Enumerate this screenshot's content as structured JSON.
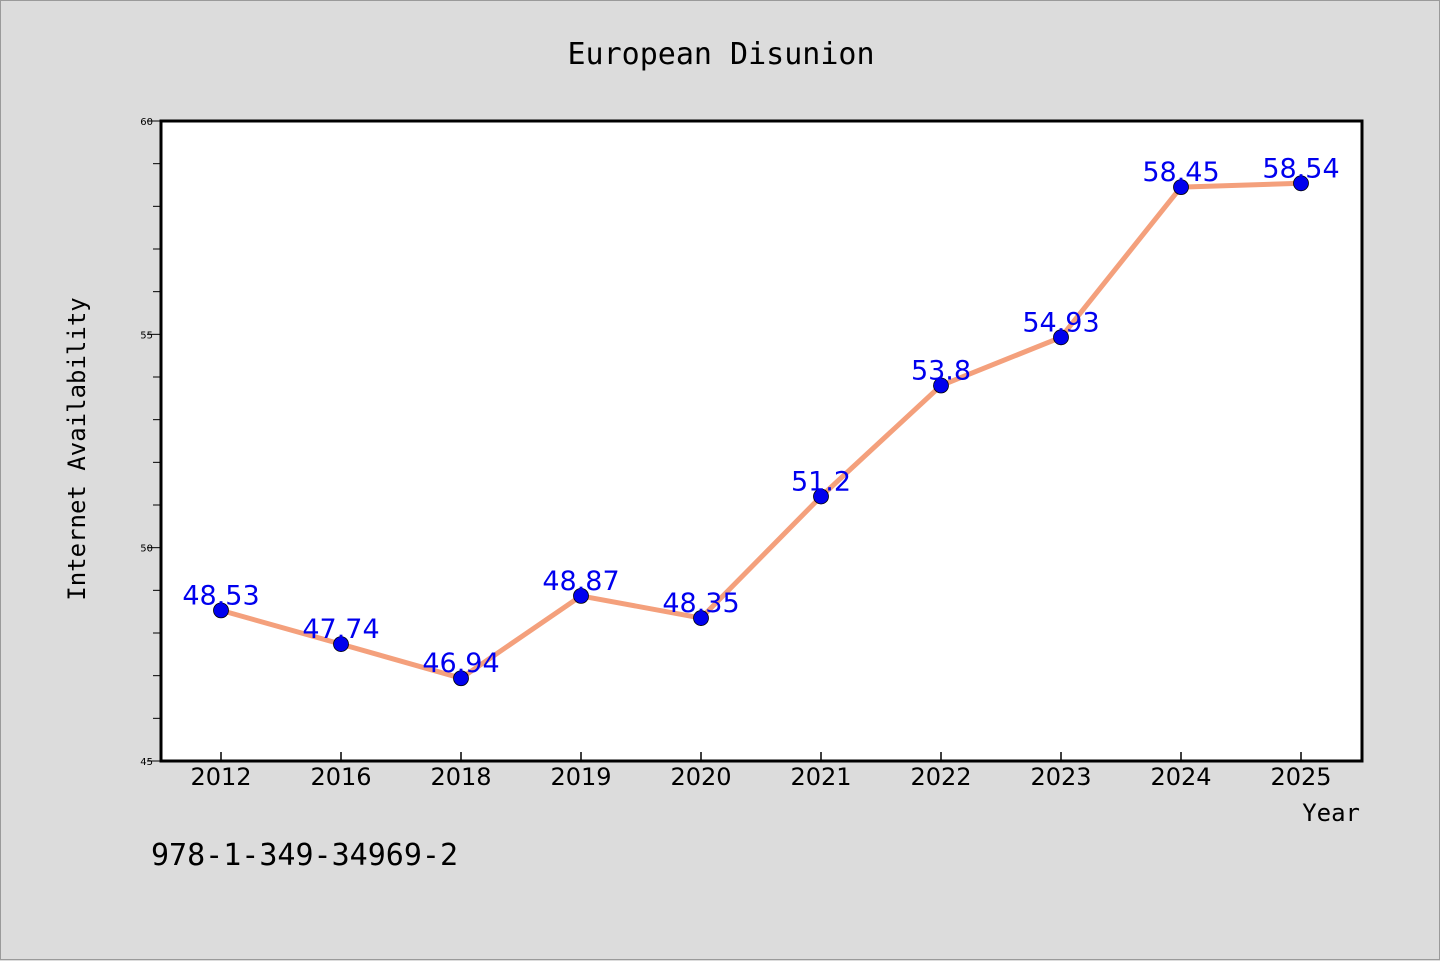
{
  "chart_data": {
    "type": "line",
    "title": "European Disunion",
    "xlabel": "Year",
    "ylabel": "Internet Availability",
    "categories": [
      "2012",
      "2016",
      "2018",
      "2019",
      "2020",
      "2021",
      "2022",
      "2023",
      "2024",
      "2025"
    ],
    "series": [
      {
        "values": [
          48.53,
          47.74,
          46.94,
          48.87,
          48.35,
          51.2,
          53.8,
          54.93,
          58.45,
          58.54
        ],
        "labels": [
          "48.53",
          "47.74",
          "46.94",
          "48.87",
          "48.35",
          "51.2",
          "53.8",
          "54.93",
          "58.45",
          "58.54"
        ]
      }
    ],
    "yticks": [
      "45",
      "50",
      "55",
      "60"
    ],
    "ylim": [
      45,
      60
    ],
    "grid": false,
    "line_color": "#f4a07c",
    "marker_color": "#0000ee",
    "label_color": "#0000ee"
  },
  "footer_text": "978-1-349-34969-2"
}
